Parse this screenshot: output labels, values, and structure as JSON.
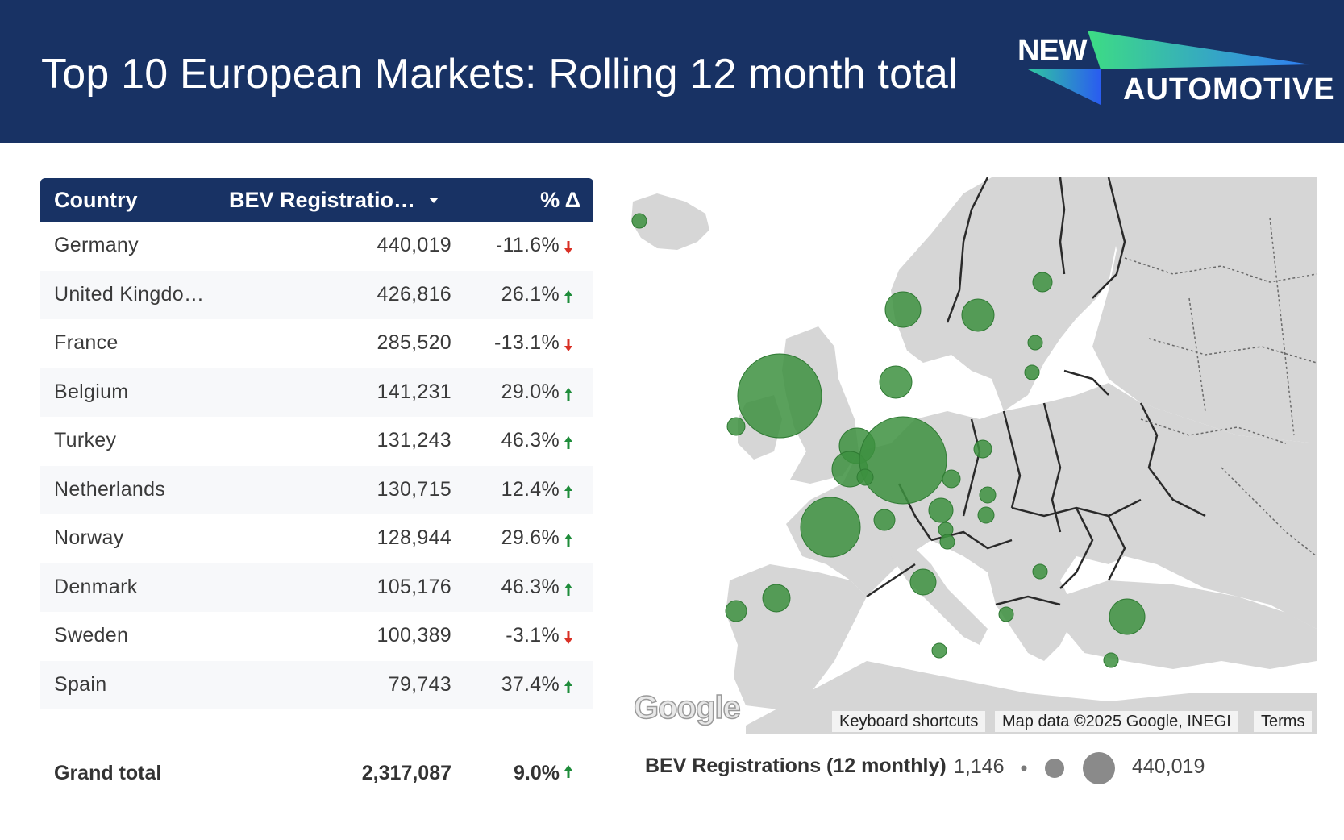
{
  "header": {
    "title": "Top 10 European Markets: Rolling 12 month total",
    "logo_top": "NEW",
    "logo_bottom": "AUTOMOTIVE"
  },
  "table": {
    "columns": [
      "Country",
      "BEV Registratio…",
      "% Δ"
    ],
    "rows": [
      {
        "country": "Germany",
        "value": "440,019",
        "pct": "-11.6%",
        "trend": "down"
      },
      {
        "country": "United Kingdo…",
        "value": "426,816",
        "pct": "26.1%",
        "trend": "up"
      },
      {
        "country": "France",
        "value": "285,520",
        "pct": "-13.1%",
        "trend": "down"
      },
      {
        "country": "Belgium",
        "value": "141,231",
        "pct": "29.0%",
        "trend": "up"
      },
      {
        "country": "Turkey",
        "value": "131,243",
        "pct": "46.3%",
        "trend": "up"
      },
      {
        "country": "Netherlands",
        "value": "130,715",
        "pct": "12.4%",
        "trend": "up"
      },
      {
        "country": "Norway",
        "value": "128,944",
        "pct": "29.6%",
        "trend": "up"
      },
      {
        "country": "Denmark",
        "value": "105,176",
        "pct": "46.3%",
        "trend": "up"
      },
      {
        "country": "Sweden",
        "value": "100,389",
        "pct": "-3.1%",
        "trend": "down"
      },
      {
        "country": "Spain",
        "value": "79,743",
        "pct": "37.4%",
        "trend": "up"
      }
    ],
    "total": {
      "label": "Grand total",
      "value": "2,317,087",
      "pct": "9.0%",
      "trend": "up"
    }
  },
  "map": {
    "google_mark": "Google",
    "attribution": {
      "shortcuts": "Keyboard shortcuts",
      "data": "Map data ©2025 Google, INEGI",
      "terms": "Terms"
    }
  },
  "legend": {
    "title": "BEV Registrations (12 monthly)",
    "min": "1,146",
    "max": "440,019"
  },
  "colors": {
    "header_bg": "#183264",
    "bubble": "#3d9140",
    "up_arrow": "#1e8c3a",
    "down_arrow": "#d93025"
  }
}
